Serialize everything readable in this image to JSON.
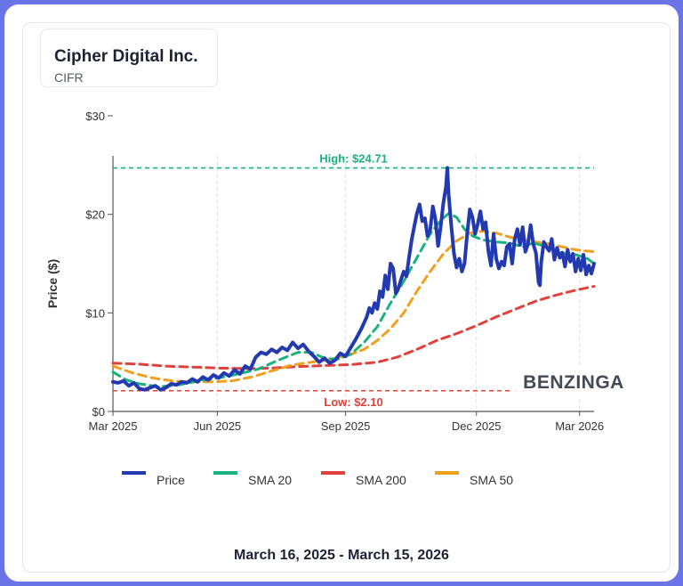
{
  "header": {
    "company": "Cipher Digital Inc.",
    "ticker": "CIFR"
  },
  "footer": {
    "date_range": "March 16, 2025 - March 15, 2026"
  },
  "watermark": "BENZINGA",
  "colors": {
    "price": "#2239b0",
    "sma20": "#19b37c",
    "sma200": "#e0413a",
    "sma50": "#f0a020",
    "high": "#19b37c",
    "low": "#e0413a",
    "border": "#6b74e6"
  },
  "chart_data": {
    "type": "line",
    "title": "Cipher Digital Inc.",
    "ylabel": "Price ($)",
    "xlabel": "",
    "ylim": [
      0,
      30
    ],
    "x_range_days": [
      0,
      364
    ],
    "yticks": [
      {
        "value": 0,
        "label": "$0"
      },
      {
        "value": 10,
        "label": "$10"
      },
      {
        "value": 20,
        "label": "$20"
      },
      {
        "value": 30,
        "label": "$30"
      }
    ],
    "xticks": [
      {
        "day": 0,
        "label": "Mar 2025"
      },
      {
        "day": 79,
        "label": "Jun 2025"
      },
      {
        "day": 176,
        "label": "Sep 2025"
      },
      {
        "day": 275,
        "label": "Dec 2025"
      },
      {
        "day": 353,
        "label": "Mar 2026"
      }
    ],
    "annotations": {
      "high": {
        "value": 24.71,
        "label": "High: $24.71"
      },
      "low": {
        "value": 2.1,
        "label": "Low: $2.10"
      }
    },
    "legend": [
      "Price",
      "SMA 20",
      "SMA 200",
      "SMA 50"
    ],
    "series": [
      {
        "name": "Price",
        "key": "price",
        "points": [
          [
            0,
            3.0
          ],
          [
            4,
            2.9
          ],
          [
            8,
            3.1
          ],
          [
            12,
            2.6
          ],
          [
            16,
            2.9
          ],
          [
            20,
            2.3
          ],
          [
            24,
            2.2
          ],
          [
            28,
            2.4
          ],
          [
            32,
            2.6
          ],
          [
            36,
            2.2
          ],
          [
            40,
            2.4
          ],
          [
            44,
            2.8
          ],
          [
            48,
            2.7
          ],
          [
            52,
            3.0
          ],
          [
            56,
            2.9
          ],
          [
            60,
            3.3
          ],
          [
            64,
            3.0
          ],
          [
            68,
            3.5
          ],
          [
            72,
            3.2
          ],
          [
            76,
            3.7
          ],
          [
            80,
            3.4
          ],
          [
            84,
            3.9
          ],
          [
            88,
            3.6
          ],
          [
            92,
            4.2
          ],
          [
            96,
            3.8
          ],
          [
            100,
            4.6
          ],
          [
            104,
            4.3
          ],
          [
            108,
            5.5
          ],
          [
            112,
            6.0
          ],
          [
            116,
            5.8
          ],
          [
            120,
            6.3
          ],
          [
            124,
            6.0
          ],
          [
            128,
            6.5
          ],
          [
            132,
            6.2
          ],
          [
            136,
            7.0
          ],
          [
            140,
            6.4
          ],
          [
            144,
            6.8
          ],
          [
            148,
            6.1
          ],
          [
            152,
            5.6
          ],
          [
            156,
            5.0
          ],
          [
            160,
            5.4
          ],
          [
            164,
            4.9
          ],
          [
            168,
            5.2
          ],
          [
            172,
            5.9
          ],
          [
            176,
            5.6
          ],
          [
            180,
            6.5
          ],
          [
            184,
            7.4
          ],
          [
            188,
            8.4
          ],
          [
            192,
            9.6
          ],
          [
            194,
            10.5
          ],
          [
            196,
            10.0
          ],
          [
            198,
            11.0
          ],
          [
            200,
            10.4
          ],
          [
            202,
            12.2
          ],
          [
            204,
            11.6
          ],
          [
            206,
            13.8
          ],
          [
            208,
            12.4
          ],
          [
            210,
            15.0
          ],
          [
            212,
            14.5
          ],
          [
            214,
            12.0
          ],
          [
            216,
            12.5
          ],
          [
            218,
            13.4
          ],
          [
            220,
            14.2
          ],
          [
            222,
            13.7
          ],
          [
            224,
            15.6
          ],
          [
            226,
            17.4
          ],
          [
            228,
            18.8
          ],
          [
            230,
            20.1
          ],
          [
            232,
            21.0
          ],
          [
            234,
            19.3
          ],
          [
            236,
            19.6
          ],
          [
            238,
            17.8
          ],
          [
            240,
            18.4
          ],
          [
            242,
            20.8
          ],
          [
            244,
            19.5
          ],
          [
            246,
            16.8
          ],
          [
            248,
            18.8
          ],
          [
            250,
            21.2
          ],
          [
            252,
            22.8
          ],
          [
            253,
            24.71
          ],
          [
            254,
            22.0
          ],
          [
            256,
            18.8
          ],
          [
            258,
            16.0
          ],
          [
            260,
            14.6
          ],
          [
            262,
            15.5
          ],
          [
            264,
            14.2
          ],
          [
            266,
            15.0
          ],
          [
            268,
            18.0
          ],
          [
            270,
            20.5
          ],
          [
            272,
            19.7
          ],
          [
            274,
            18.0
          ],
          [
            276,
            19.0
          ],
          [
            278,
            20.3
          ],
          [
            280,
            18.5
          ],
          [
            282,
            19.2
          ],
          [
            284,
            16.3
          ],
          [
            286,
            14.8
          ],
          [
            288,
            18.0
          ],
          [
            290,
            15.5
          ],
          [
            292,
            14.5
          ],
          [
            294,
            15.2
          ],
          [
            296,
            14.8
          ],
          [
            298,
            16.7
          ],
          [
            300,
            17.0
          ],
          [
            302,
            15.0
          ],
          [
            304,
            17.5
          ],
          [
            306,
            18.5
          ],
          [
            308,
            16.9
          ],
          [
            310,
            18.7
          ],
          [
            312,
            16.2
          ],
          [
            314,
            17.0
          ],
          [
            316,
            18.9
          ],
          [
            318,
            17.0
          ],
          [
            320,
            16.1
          ],
          [
            322,
            13.1
          ],
          [
            323,
            12.8
          ],
          [
            324,
            15.1
          ],
          [
            326,
            17.2
          ],
          [
            328,
            16.7
          ],
          [
            330,
            16.3
          ],
          [
            332,
            17.5
          ],
          [
            334,
            15.4
          ],
          [
            336,
            16.6
          ],
          [
            338,
            15.6
          ],
          [
            340,
            16.1
          ],
          [
            342,
            14.7
          ],
          [
            344,
            16.4
          ],
          [
            346,
            15.2
          ],
          [
            348,
            16.0
          ],
          [
            350,
            14.2
          ],
          [
            352,
            15.5
          ],
          [
            354,
            14.3
          ],
          [
            356,
            15.9
          ],
          [
            358,
            13.9
          ],
          [
            360,
            14.8
          ],
          [
            362,
            14.0
          ],
          [
            364,
            15.0
          ]
        ]
      },
      {
        "name": "SMA 20",
        "key": "sma20",
        "points": [
          [
            0,
            4.0
          ],
          [
            10,
            3.2
          ],
          [
            20,
            2.8
          ],
          [
            35,
            2.5
          ],
          [
            50,
            2.7
          ],
          [
            65,
            3.1
          ],
          [
            80,
            3.4
          ],
          [
            95,
            3.8
          ],
          [
            110,
            4.3
          ],
          [
            125,
            5.2
          ],
          [
            140,
            6.0
          ],
          [
            150,
            6.0
          ],
          [
            160,
            5.4
          ],
          [
            170,
            5.3
          ],
          [
            180,
            5.8
          ],
          [
            190,
            7.0
          ],
          [
            200,
            8.6
          ],
          [
            210,
            11.0
          ],
          [
            220,
            13.2
          ],
          [
            230,
            15.6
          ],
          [
            240,
            18.0
          ],
          [
            248,
            19.4
          ],
          [
            254,
            20.1
          ],
          [
            260,
            19.7
          ],
          [
            266,
            18.5
          ],
          [
            272,
            17.8
          ],
          [
            280,
            17.4
          ],
          [
            290,
            17.2
          ],
          [
            300,
            17.1
          ],
          [
            310,
            16.7
          ],
          [
            318,
            17.1
          ],
          [
            326,
            16.8
          ],
          [
            334,
            16.4
          ],
          [
            342,
            16.0
          ],
          [
            350,
            15.9
          ],
          [
            358,
            15.6
          ],
          [
            364,
            15.0
          ]
        ]
      },
      {
        "name": "SMA 200",
        "key": "sma200",
        "points": [
          [
            0,
            4.9
          ],
          [
            20,
            4.8
          ],
          [
            40,
            4.6
          ],
          [
            60,
            4.5
          ],
          [
            80,
            4.4
          ],
          [
            100,
            4.35
          ],
          [
            120,
            4.4
          ],
          [
            140,
            4.55
          ],
          [
            160,
            4.65
          ],
          [
            180,
            4.75
          ],
          [
            200,
            5.0
          ],
          [
            215,
            5.5
          ],
          [
            230,
            6.3
          ],
          [
            245,
            7.2
          ],
          [
            260,
            7.9
          ],
          [
            275,
            8.7
          ],
          [
            290,
            9.6
          ],
          [
            305,
            10.4
          ],
          [
            320,
            11.2
          ],
          [
            335,
            11.8
          ],
          [
            350,
            12.3
          ],
          [
            364,
            12.7
          ]
        ]
      },
      {
        "name": "SMA 50",
        "key": "sma50",
        "points": [
          [
            0,
            4.6
          ],
          [
            15,
            3.9
          ],
          [
            30,
            3.4
          ],
          [
            45,
            3.1
          ],
          [
            60,
            3.0
          ],
          [
            75,
            3.0
          ],
          [
            90,
            3.1
          ],
          [
            105,
            3.5
          ],
          [
            120,
            4.1
          ],
          [
            135,
            4.7
          ],
          [
            150,
            5.0
          ],
          [
            165,
            5.3
          ],
          [
            180,
            5.8
          ],
          [
            190,
            6.3
          ],
          [
            200,
            7.2
          ],
          [
            210,
            8.4
          ],
          [
            220,
            10.0
          ],
          [
            230,
            12.2
          ],
          [
            240,
            14.2
          ],
          [
            250,
            16.0
          ],
          [
            260,
            17.3
          ],
          [
            270,
            18.1
          ],
          [
            280,
            18.3
          ],
          [
            290,
            18.1
          ],
          [
            300,
            17.7
          ],
          [
            310,
            17.4
          ],
          [
            320,
            17.2
          ],
          [
            330,
            17.0
          ],
          [
            340,
            16.7
          ],
          [
            350,
            16.4
          ],
          [
            364,
            16.2
          ]
        ]
      }
    ]
  }
}
